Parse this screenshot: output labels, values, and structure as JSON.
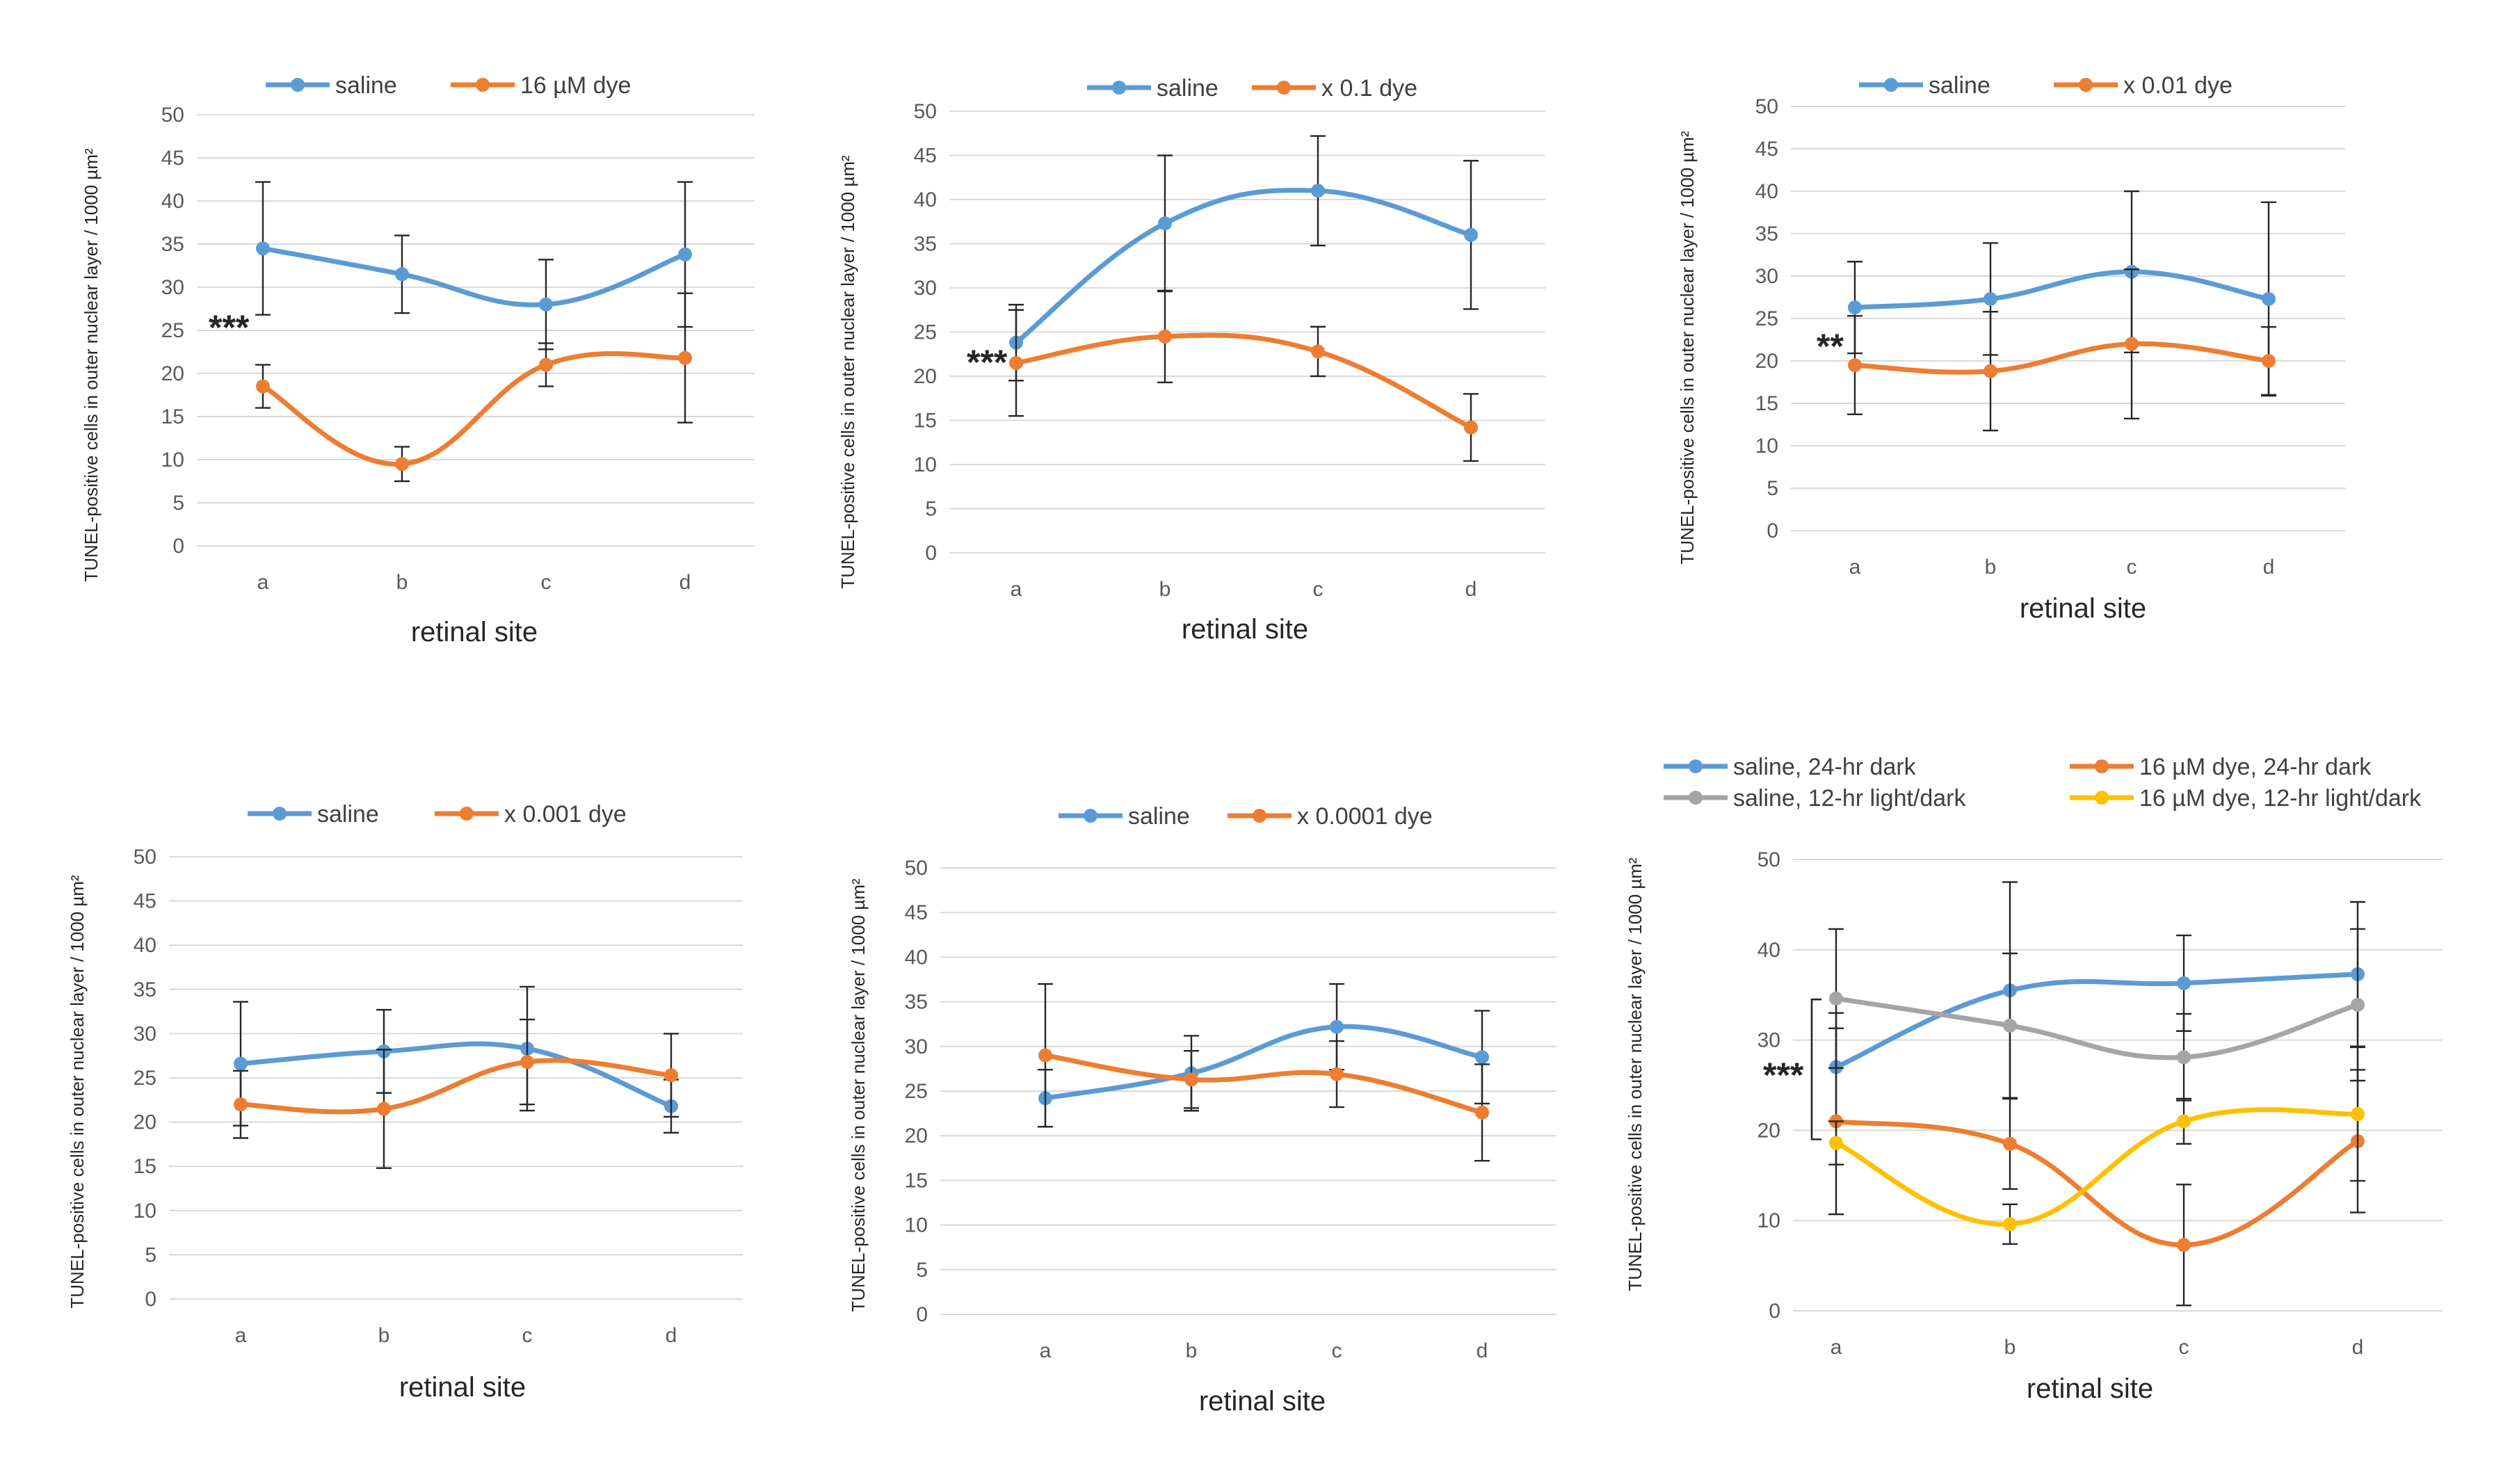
{
  "chart_data": [
    {
      "type": "line",
      "title": "",
      "xlabel": "retinal site",
      "ylabel": "TUNEL-positive cells  in outer nuclear layer / 1000 µm²",
      "categories": [
        "a",
        "b",
        "c",
        "d"
      ],
      "ylim": [
        0,
        50
      ],
      "yticks": [
        0,
        5,
        10,
        15,
        20,
        25,
        30,
        35,
        40,
        45,
        50
      ],
      "grid": true,
      "legend": "top",
      "annotation": "***",
      "series": [
        {
          "name": "saline",
          "color": "#5b9bd5",
          "values": [
            34.5,
            31.5,
            28,
            33.8
          ],
          "errors": [
            7.7,
            4.5,
            5.2,
            8.4
          ]
        },
        {
          "name": "16 µM dye",
          "color": "#ed7d31",
          "values": [
            18.5,
            9.5,
            21,
            21.8
          ],
          "errors": [
            2.5,
            2,
            2.5,
            7.5
          ]
        }
      ]
    },
    {
      "type": "line",
      "title": "",
      "xlabel": "retinal site",
      "ylabel": "TUNEL-positive cells  in outer nuclear layer / 1000 µm²",
      "categories": [
        "a",
        "b",
        "c",
        "d"
      ],
      "ylim": [
        0,
        50
      ],
      "yticks": [
        0,
        5,
        10,
        15,
        20,
        25,
        30,
        35,
        40,
        45,
        50
      ],
      "grid": true,
      "legend": "top",
      "annotation": "***",
      "series": [
        {
          "name": "saline",
          "color": "#5b9bd5",
          "values": [
            23.8,
            37.3,
            41,
            36
          ],
          "errors": [
            4.3,
            7.7,
            6.2,
            8.4
          ]
        },
        {
          "name": "x 0.1 dye",
          "color": "#ed7d31",
          "values": [
            21.5,
            24.5,
            22.8,
            14.2
          ],
          "errors": [
            6,
            5.2,
            2.8,
            3.8
          ]
        }
      ]
    },
    {
      "type": "line",
      "title": "",
      "xlabel": "retinal site",
      "ylabel": "TUNEL-positive cells  in outer nuclear layer / 1000 µm²",
      "categories": [
        "a",
        "b",
        "c",
        "d"
      ],
      "ylim": [
        0,
        50
      ],
      "yticks": [
        0,
        5,
        10,
        15,
        20,
        25,
        30,
        35,
        40,
        45,
        50
      ],
      "grid": true,
      "legend": "top",
      "annotation": "**",
      "series": [
        {
          "name": "saline",
          "color": "#5b9bd5",
          "values": [
            26.3,
            27.3,
            30.5,
            27.3
          ],
          "errors": [
            5.4,
            6.6,
            9.5,
            11.4
          ]
        },
        {
          "name": "x 0.01 dye",
          "color": "#ed7d31",
          "values": [
            19.5,
            18.8,
            22,
            20
          ],
          "errors": [
            5.8,
            7,
            8.8,
            4
          ]
        }
      ]
    },
    {
      "type": "line",
      "title": "",
      "xlabel": "retinal site",
      "ylabel": "TUNEL-positive cells  in outer nuclear layer / 1000 µm²",
      "categories": [
        "a",
        "b",
        "c",
        "d"
      ],
      "ylim": [
        0,
        50
      ],
      "yticks": [
        0,
        5,
        10,
        15,
        20,
        25,
        30,
        35,
        40,
        45,
        50
      ],
      "grid": true,
      "legend": "top",
      "annotation": "",
      "series": [
        {
          "name": "saline",
          "color": "#5b9bd5",
          "values": [
            26.6,
            28,
            28.3,
            21.8
          ],
          "errors": [
            7,
            4.7,
            7,
            3
          ]
        },
        {
          "name": "x 0.001 dye",
          "color": "#ed7d31",
          "values": [
            22,
            21.5,
            26.8,
            25.3
          ],
          "errors": [
            3.8,
            6.7,
            4.8,
            4.7
          ]
        }
      ]
    },
    {
      "type": "line",
      "title": "",
      "xlabel": "retinal site",
      "ylabel": "TUNEL-positive cells  in outer nuclear layer / 1000 µm²",
      "categories": [
        "a",
        "b",
        "c",
        "d"
      ],
      "ylim": [
        0,
        50
      ],
      "yticks": [
        0,
        5,
        10,
        15,
        20,
        25,
        30,
        35,
        40,
        45,
        50
      ],
      "grid": true,
      "legend": "top",
      "annotation": "",
      "series": [
        {
          "name": "saline",
          "color": "#5b9bd5",
          "values": [
            24.2,
            27,
            32.2,
            28.8
          ],
          "errors": [
            3.2,
            4.2,
            4.8,
            5.2
          ]
        },
        {
          "name": "x 0.0001 dye",
          "color": "#ed7d31",
          "values": [
            29,
            26.3,
            26.9,
            22.6
          ],
          "errors": [
            8,
            3.2,
            3.7,
            5.4
          ]
        }
      ]
    },
    {
      "type": "line",
      "title": "",
      "xlabel": "retinal site",
      "ylabel": "TUNEL-positive cells  in outer nuclear layer / 1000 µm²",
      "categories": [
        "a",
        "b",
        "c",
        "d"
      ],
      "ylim": [
        0,
        50
      ],
      "yticks": [
        0,
        10,
        20,
        30,
        40,
        50
      ],
      "grid": true,
      "legend": "top",
      "annotation": "***",
      "series": [
        {
          "name": "saline, 24-hr dark",
          "color": "#5b9bd5",
          "values": [
            27,
            35.5,
            36.3,
            37.3
          ],
          "errors": [
            6,
            12,
            5.3,
            8
          ]
        },
        {
          "name": "16 µM dye, 24-hr dark",
          "color": "#ed7d31",
          "values": [
            21,
            18.5,
            7.3,
            18.8
          ],
          "errors": [
            10.3,
            5,
            6.7,
            7.9
          ]
        },
        {
          "name": "saline, 12-hr light/dark",
          "color": "#a5a5a5",
          "values": [
            34.6,
            31.6,
            28.1,
            33.9
          ],
          "errors": [
            7.7,
            8,
            4.8,
            8.4
          ]
        },
        {
          "name": "16 µM dye, 12-hr light/dark",
          "color": "#ffc000",
          "values": [
            18.6,
            9.6,
            21,
            21.8
          ],
          "errors": [
            2.4,
            2.2,
            2.5,
            7.4
          ]
        }
      ]
    }
  ]
}
